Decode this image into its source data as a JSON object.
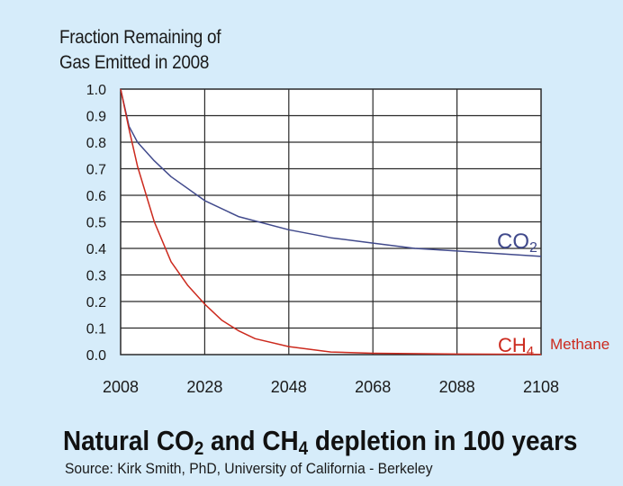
{
  "chart_data": {
    "type": "line",
    "ylabel_lines": [
      "Fraction Remaining of",
      "Gas Emitted in 2008"
    ],
    "x_ticks": [
      "2008",
      "2028",
      "2048",
      "2068",
      "2088",
      "2108"
    ],
    "y_ticks": [
      "1.0",
      "0.9",
      "0.8",
      "0.7",
      "0.6",
      "0.5",
      "0.4",
      "0.3",
      "0.2",
      "0.1",
      "0.0"
    ],
    "xlim": [
      2008,
      2108
    ],
    "ylim": [
      0,
      1.0
    ],
    "series": [
      {
        "name": "CO2",
        "label_main": "CO",
        "label_sub": "2",
        "label_extra": "",
        "color": "#414a8c",
        "x": [
          2008,
          2010,
          2012,
          2016,
          2020,
          2028,
          2036,
          2048,
          2058,
          2068,
          2078,
          2088,
          2098,
          2108
        ],
        "values": [
          1.0,
          0.86,
          0.8,
          0.73,
          0.67,
          0.58,
          0.52,
          0.47,
          0.44,
          0.42,
          0.4,
          0.39,
          0.38,
          0.37
        ]
      },
      {
        "name": "CH4 Methane",
        "label_main": "CH",
        "label_sub": "4",
        "label_extra": "Methane",
        "color": "#cc2a1e",
        "x": [
          2008,
          2010,
          2012,
          2016,
          2020,
          2024,
          2028,
          2032,
          2036,
          2040,
          2048,
          2058,
          2068,
          2088,
          2108
        ],
        "values": [
          1.0,
          0.85,
          0.71,
          0.5,
          0.35,
          0.26,
          0.19,
          0.13,
          0.09,
          0.06,
          0.03,
          0.01,
          0.005,
          0.002,
          0.001
        ]
      }
    ],
    "caption": {
      "title_parts": [
        "Natural CO",
        "2",
        " and CH",
        "4",
        " depletion in 100 years"
      ],
      "source": "Source:  Kirk Smith, PhD, University of California - Berkeley"
    }
  }
}
